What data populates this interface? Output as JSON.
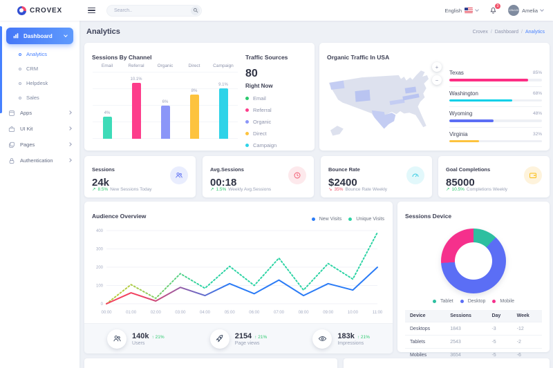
{
  "topbar": {
    "logo_text": "CROVEX",
    "search_placeholder": "Search..",
    "language": "English",
    "notification_count": "3",
    "user_name": "Amelia",
    "avatar_placeholder": "128x128"
  },
  "sidebar": {
    "dashboard_label": "Dashboard",
    "dashboard_children": [
      {
        "label": "Analytics"
      },
      {
        "label": "CRM"
      },
      {
        "label": "Helpdesk"
      },
      {
        "label": "Sales"
      }
    ],
    "items": [
      {
        "label": "Apps"
      },
      {
        "label": "UI Kit"
      },
      {
        "label": "Pages"
      },
      {
        "label": "Authentication"
      }
    ]
  },
  "page": {
    "title": "Analytics",
    "breadcrumb": [
      "Crovex",
      "Dashboard",
      "Analytics"
    ]
  },
  "sessions_by_channel": {
    "title": "Sessions By Channel",
    "chart_data": {
      "type": "bar",
      "categories": [
        "Email",
        "Referral",
        "Organic",
        "Direct",
        "Campaign"
      ],
      "values": [
        4,
        10.1,
        6,
        8,
        9.1
      ],
      "value_labels": [
        "4%",
        "10.1%",
        "6%",
        "8%",
        "9.1%"
      ],
      "colors": [
        "#3ddbb8",
        "#fd3d8b",
        "#8b96f8",
        "#fdc33e",
        "#2ed3e8"
      ],
      "ylim": [
        0,
        11
      ]
    }
  },
  "traffic_sources": {
    "title": "Traffic Sources",
    "value": "80",
    "subtitle": "Right Now",
    "legend": [
      {
        "label": "Email",
        "color": "#2bc96d"
      },
      {
        "label": "Referral",
        "color": "#fd3d8b"
      },
      {
        "label": "Organic",
        "color": "#8b96f8"
      },
      {
        "label": "Direct",
        "color": "#fdc33e"
      },
      {
        "label": "Campaign",
        "color": "#2ed3e8"
      }
    ]
  },
  "organic_traffic": {
    "title": "Organic Traffic In USA",
    "zoom_in": "+",
    "zoom_out": "−",
    "highlighted_states": [
      "Washington",
      "Wyoming",
      "Texas",
      "Pennsylvania",
      "Kentucky",
      "Virginia"
    ],
    "regions": [
      {
        "label": "Texas",
        "value": "85%",
        "pct": 85,
        "color": "#fd2e84"
      },
      {
        "label": "Washington",
        "value": "68%",
        "pct": 68,
        "color": "#00d0e8"
      },
      {
        "label": "Wyoming",
        "value": "48%",
        "pct": 48,
        "color": "#5b6ef5"
      },
      {
        "label": "Virginia",
        "value": "32%",
        "pct": 32,
        "color": "#fdc33e"
      }
    ]
  },
  "stats": [
    {
      "title": "Sessions",
      "value": "24k",
      "trend_arrow": "↗",
      "trend_value": "8.5%",
      "trend_text": "New Sessions Today",
      "trend_dir": "up",
      "icon": "users-icon",
      "icon_color": "#6577f3",
      "icon_bg": "#e9edfe"
    },
    {
      "title": "Avg.Sessions",
      "value": "00:18",
      "trend_arrow": "↗",
      "trend_value": "1.5%",
      "trend_text": "Weekly Avg.Sessions",
      "trend_dir": "up",
      "icon": "clock-icon",
      "icon_color": "#f1556c",
      "icon_bg": "#fde9ec"
    },
    {
      "title": "Bounce Rate",
      "value": "$2400",
      "trend_arrow": "↘",
      "trend_value": "35%",
      "trend_text": "Bounce Rate Weekly",
      "trend_dir": "down",
      "icon": "gauge-icon",
      "icon_color": "#2bc8e0",
      "icon_bg": "#e2f8fb"
    },
    {
      "title": "Goal Completions",
      "value": "85000",
      "trend_arrow": "↗",
      "trend_value": "10.5%",
      "trend_text": "Completions Weekly",
      "trend_dir": "up",
      "icon": "wallet-icon",
      "icon_color": "#f9bc0d",
      "icon_bg": "#fef3dc"
    }
  ],
  "audience_overview": {
    "title": "Audience Overview",
    "delta_arrow": "↑",
    "chart_data": {
      "type": "line",
      "x_labels": [
        "00:00",
        "01:00",
        "02:00",
        "03:00",
        "04:00",
        "05:00",
        "06:00",
        "07:00",
        "08:00",
        "09:00",
        "10:00",
        "11:00"
      ],
      "y_ticks": [
        0,
        100,
        200,
        300,
        400
      ],
      "ylim": [
        0,
        400
      ],
      "grid": true,
      "legend_position": "top-right",
      "series": [
        {
          "name": "New Visits",
          "style": "solid",
          "color_start": "#f2415f",
          "color_end": "#2a7bf6",
          "values": [
            0,
            60,
            15,
            90,
            45,
            110,
            55,
            130,
            45,
            110,
            75,
            200
          ]
        },
        {
          "name": "Unique Visits",
          "style": "dotted",
          "color_start": "#b5cc40",
          "color_end": "#2dd3a4",
          "values": [
            0,
            105,
            30,
            165,
            85,
            205,
            100,
            250,
            75,
            220,
            135,
            390
          ]
        }
      ]
    },
    "footer_stats": [
      {
        "value": "140k",
        "delta": "21%",
        "label": "Users",
        "icon": "users-icon"
      },
      {
        "value": "2154",
        "delta": "21%",
        "label": "Page views",
        "icon": "rocket-icon"
      },
      {
        "value": "183k",
        "delta": "21%",
        "label": "Impressions",
        "icon": "eye-icon"
      }
    ]
  },
  "sessions_device": {
    "title": "Sessions Device",
    "chart_data": {
      "type": "pie",
      "slices": [
        {
          "label": "Tablet",
          "value": 12,
          "color": "#2dbfa0"
        },
        {
          "label": "Desktop",
          "value": 62,
          "color": "#5b6ef5"
        },
        {
          "label": "Mobile",
          "value": 26,
          "color": "#f5308c"
        }
      ]
    },
    "table": {
      "headers": [
        "Device",
        "Sessions",
        "Day",
        "Week"
      ],
      "rows": [
        [
          "Desktops",
          "1843",
          "-3",
          "-12"
        ],
        [
          "Tablets",
          "2543",
          "-5",
          "-2"
        ],
        [
          "Mobiles",
          "3654",
          "-5",
          "-6"
        ]
      ]
    }
  }
}
